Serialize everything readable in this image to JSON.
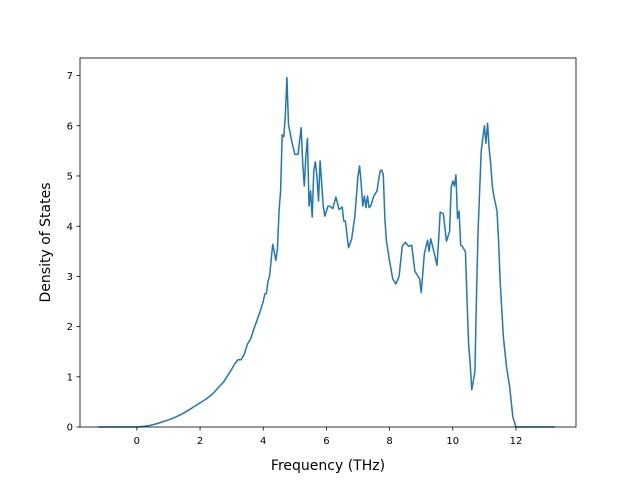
{
  "chart_data": {
    "type": "line",
    "title": "",
    "xlabel": "Frequency (THz)",
    "ylabel": "Density of States",
    "xlim": [
      -1.8,
      13.9
    ],
    "ylim": [
      0,
      7.35
    ],
    "xticks": [
      0,
      2,
      4,
      6,
      8,
      10,
      12
    ],
    "yticks": [
      0,
      1,
      2,
      3,
      4,
      5,
      6,
      7
    ],
    "grid": false,
    "legend": "none",
    "line_color": "#1f77b4",
    "series": [
      {
        "x": [
          -1.2,
          -0.8,
          -0.4,
          0.0,
          0.2,
          0.4,
          0.6,
          0.8,
          1.0,
          1.2,
          1.4,
          1.6,
          1.8,
          2.0,
          2.2,
          2.4,
          2.6,
          2.75,
          2.9,
          3.0,
          3.1,
          3.2,
          3.3,
          3.4,
          3.5,
          3.6,
          3.7,
          3.8,
          3.9,
          4.0,
          4.05,
          4.1,
          4.15,
          4.2,
          4.3,
          4.4,
          4.45,
          4.5,
          4.55,
          4.6,
          4.65,
          4.7,
          4.75,
          4.8,
          4.9,
          5.0,
          5.1,
          5.2,
          5.25,
          5.3,
          5.35,
          5.4,
          5.45,
          5.5,
          5.55,
          5.6,
          5.65,
          5.7,
          5.75,
          5.8,
          5.9,
          5.95,
          6.0,
          6.05,
          6.1,
          6.2,
          6.3,
          6.4,
          6.5,
          6.55,
          6.6,
          6.7,
          6.8,
          6.9,
          7.0,
          7.05,
          7.1,
          7.15,
          7.2,
          7.25,
          7.3,
          7.35,
          7.4,
          7.5,
          7.6,
          7.7,
          7.75,
          7.8,
          7.85,
          7.9,
          8.0,
          8.1,
          8.2,
          8.3,
          8.4,
          8.5,
          8.6,
          8.7,
          8.8,
          8.9,
          8.95,
          9.0,
          9.1,
          9.2,
          9.25,
          9.3,
          9.4,
          9.5,
          9.55,
          9.6,
          9.7,
          9.8,
          9.9,
          9.95,
          10.0,
          10.05,
          10.1,
          10.15,
          10.2,
          10.25,
          10.3,
          10.4,
          10.45,
          10.5,
          10.55,
          10.6,
          10.7,
          10.75,
          10.8,
          10.9,
          11.0,
          11.05,
          11.1,
          11.15,
          11.2,
          11.25,
          11.3,
          11.4,
          11.45,
          11.5,
          11.6,
          11.7,
          11.8,
          11.9,
          12.0,
          12.2,
          12.6,
          13.2
        ],
        "y": [
          0,
          0,
          0,
          0,
          0.01,
          0.03,
          0.06,
          0.1,
          0.14,
          0.19,
          0.25,
          0.32,
          0.4,
          0.48,
          0.56,
          0.66,
          0.8,
          0.9,
          1.05,
          1.15,
          1.26,
          1.34,
          1.34,
          1.45,
          1.65,
          1.75,
          1.95,
          2.12,
          2.3,
          2.5,
          2.65,
          2.66,
          2.9,
          3.0,
          3.64,
          3.32,
          3.55,
          4.3,
          4.7,
          5.82,
          5.78,
          6.2,
          6.96,
          6.02,
          5.7,
          5.43,
          5.43,
          5.96,
          5.25,
          4.8,
          5.4,
          5.75,
          4.4,
          4.7,
          4.18,
          5.1,
          5.28,
          5.0,
          4.5,
          5.3,
          4.4,
          4.2,
          4.3,
          4.4,
          4.4,
          4.35,
          4.58,
          4.33,
          4.38,
          4.1,
          4.1,
          3.57,
          3.75,
          4.2,
          5.0,
          5.2,
          4.85,
          4.4,
          4.6,
          4.37,
          4.6,
          4.37,
          4.4,
          4.6,
          4.7,
          5.1,
          5.12,
          5.02,
          4.15,
          3.7,
          3.3,
          2.95,
          2.85,
          3.0,
          3.6,
          3.68,
          3.6,
          3.62,
          3.1,
          3.0,
          2.95,
          2.68,
          3.45,
          3.72,
          3.5,
          3.75,
          3.5,
          3.22,
          3.7,
          4.28,
          4.25,
          3.7,
          3.9,
          4.78,
          4.9,
          4.8,
          5.02,
          4.15,
          4.3,
          3.62,
          3.6,
          3.49,
          2.55,
          1.65,
          1.27,
          0.74,
          1.1,
          2.6,
          3.9,
          5.5,
          6.0,
          5.65,
          6.05,
          5.55,
          5.25,
          4.8,
          4.6,
          4.3,
          3.7,
          2.9,
          1.8,
          1.2,
          0.8,
          0.2,
          0,
          0,
          0,
          0
        ]
      }
    ]
  }
}
